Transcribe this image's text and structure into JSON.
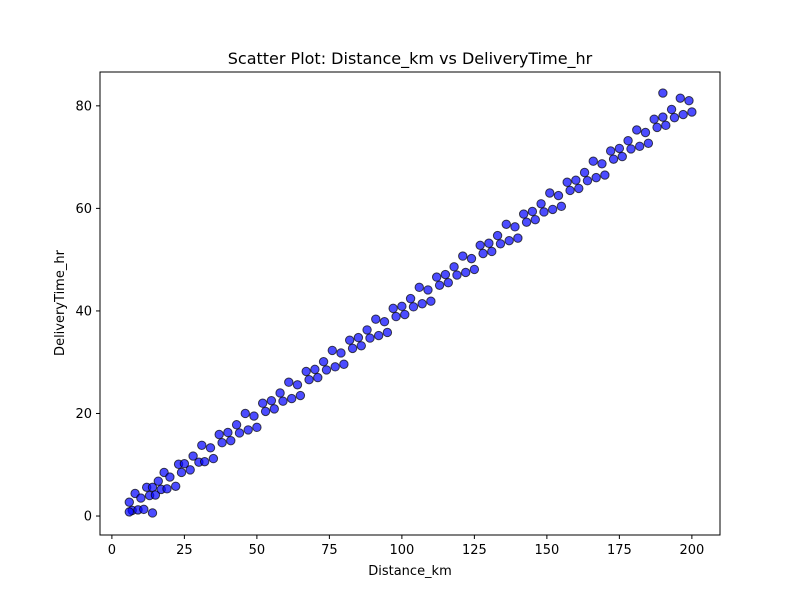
{
  "chart_data": {
    "type": "scatter",
    "title": "Scatter Plot: Distance_km vs DeliveryTime_hr",
    "x_label": "Distance_km",
    "y_label": "DeliveryTime_hr",
    "color": "#0000ff",
    "edgecolor": "#000000",
    "alpha": 0.7,
    "x": [
      6,
      7,
      8,
      9,
      10,
      11,
      12,
      13,
      14,
      15,
      16,
      17,
      18,
      19,
      20,
      22,
      23,
      24,
      25,
      27,
      28,
      30,
      31,
      32,
      34,
      35,
      37,
      38,
      40,
      41,
      43,
      44,
      46,
      47,
      49,
      50,
      52,
      53,
      55,
      56,
      58,
      59,
      61,
      62,
      64,
      65,
      67,
      68,
      70,
      71,
      73,
      74,
      76,
      77,
      79,
      80,
      82,
      83,
      85,
      86,
      88,
      89,
      91,
      92,
      94,
      95,
      97,
      98,
      100,
      101,
      103,
      104,
      106,
      107,
      109,
      110,
      112,
      113,
      115,
      116,
      118,
      119,
      121,
      122,
      124,
      125,
      127,
      128,
      130,
      131,
      133,
      134,
      136,
      137,
      139,
      140,
      142,
      143,
      145,
      146,
      148,
      149,
      151,
      152,
      154,
      155,
      157,
      158,
      160,
      161,
      163,
      164,
      166,
      167,
      169,
      170,
      172,
      173,
      175,
      176,
      178,
      179,
      181,
      182,
      184,
      185,
      187,
      188,
      190,
      191,
      193,
      194,
      196,
      197,
      199,
      200,
      190,
      14,
      6
    ],
    "values": [
      2.7,
      1.1,
      4.4,
      1.2,
      3.5,
      1.3,
      5.6,
      4.0,
      5.6,
      4.1,
      6.8,
      5.2,
      8.5,
      5.3,
      7.6,
      5.8,
      10.1,
      8.5,
      10.2,
      9.0,
      11.7,
      10.5,
      13.8,
      10.6,
      13.3,
      11.2,
      15.9,
      14.3,
      16.3,
      14.7,
      17.8,
      16.2,
      20.0,
      16.8,
      19.5,
      17.3,
      22.0,
      20.4,
      22.5,
      20.9,
      24.0,
      22.4,
      26.1,
      22.9,
      25.6,
      23.5,
      28.2,
      26.6,
      28.6,
      27.0,
      30.1,
      28.5,
      32.3,
      29.1,
      31.8,
      29.6,
      34.3,
      32.7,
      34.8,
      33.2,
      36.3,
      34.7,
      38.4,
      35.2,
      37.9,
      35.8,
      40.5,
      38.9,
      40.9,
      39.3,
      42.4,
      40.8,
      44.6,
      41.4,
      44.1,
      41.9,
      46.6,
      45.0,
      47.1,
      45.5,
      48.6,
      47.0,
      50.7,
      47.5,
      50.2,
      48.1,
      52.8,
      51.2,
      53.2,
      51.6,
      54.7,
      53.1,
      56.9,
      53.7,
      56.4,
      54.2,
      58.9,
      57.3,
      59.4,
      57.8,
      60.9,
      59.3,
      63.0,
      59.8,
      62.5,
      60.4,
      65.1,
      63.5,
      65.5,
      63.9,
      67.0,
      65.4,
      69.2,
      66.0,
      68.7,
      66.5,
      71.2,
      69.6,
      71.7,
      70.1,
      73.2,
      71.6,
      75.3,
      72.1,
      74.8,
      72.7,
      77.4,
      75.8,
      77.8,
      76.2,
      79.3,
      77.7,
      81.5,
      78.3,
      81.0,
      78.8,
      82.5,
      0.6,
      0.8
    ],
    "xlim": [
      -4.1,
      209.7
    ],
    "ylim": [
      -3.7,
      86.6
    ],
    "xticks": [
      0,
      25,
      50,
      75,
      100,
      125,
      150,
      175,
      200
    ],
    "yticks": [
      0,
      20,
      40,
      60,
      80
    ]
  }
}
